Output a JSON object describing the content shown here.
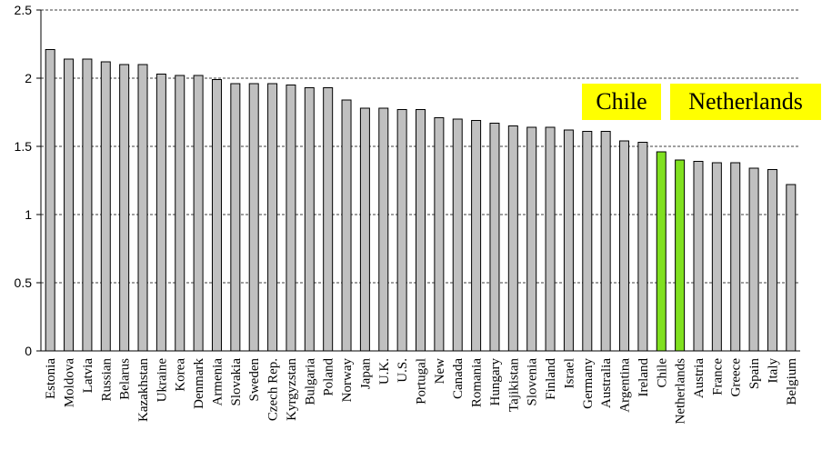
{
  "chart_data": {
    "type": "bar",
    "title": "",
    "xlabel": "",
    "ylabel": "",
    "ylim": [
      0,
      2.5
    ],
    "yticks": [
      0,
      0.5,
      1,
      1.5,
      2,
      2.5
    ],
    "ytick_labels": [
      "0",
      "0.5",
      "1",
      "1.5",
      "2",
      "2.5"
    ],
    "grid": "horizontal dashed",
    "legend": "none",
    "categories": [
      "Estonia",
      "Moldova",
      "Latvia",
      "Russian",
      "Belarus",
      "Kazakhstan",
      "Ukraine",
      "Korea",
      "Denmark",
      "Armenia",
      "Slovakia",
      "Sweden",
      "Czech Rep.",
      "Kyrgyzstan",
      "Bulgaria",
      "Poland",
      "Norway",
      "Japan",
      "U.K.",
      "U.S.",
      "Portugal",
      "New",
      "Canada",
      "Romania",
      "Hungary",
      "Tajikistan",
      "Slovenia",
      "Finland",
      "Israel",
      "Germany",
      "Australia",
      "Argentina",
      "Ireland",
      "Chile",
      "Netherlands",
      "Austria",
      "France",
      "Greece",
      "Spain",
      "Italy",
      "Belgium"
    ],
    "values": [
      2.21,
      2.14,
      2.14,
      2.12,
      2.1,
      2.1,
      2.03,
      2.02,
      2.02,
      1.99,
      1.96,
      1.96,
      1.96,
      1.95,
      1.93,
      1.93,
      1.84,
      1.78,
      1.78,
      1.77,
      1.77,
      1.71,
      1.7,
      1.69,
      1.67,
      1.65,
      1.64,
      1.64,
      1.62,
      1.61,
      1.61,
      1.54,
      1.53,
      1.46,
      1.4,
      1.39,
      1.38,
      1.38,
      1.34,
      1.33,
      1.22
    ],
    "highlighted": [
      "Chile",
      "Netherlands"
    ],
    "bar_color": "#c0c0c0",
    "highlight_color": "#80e020",
    "annotations": [
      "Chile",
      "Netherlands"
    ]
  },
  "colors": {
    "annotation_background": "#ffff00",
    "axis": "#000000",
    "grid": "#000000"
  }
}
